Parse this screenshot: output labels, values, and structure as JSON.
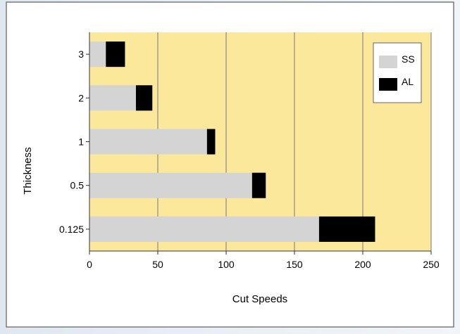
{
  "chart_data": {
    "type": "bar",
    "orientation": "horizontal",
    "stacked": true,
    "categories": [
      "3",
      "2",
      "1",
      "0.5",
      "0.125"
    ],
    "series": [
      {
        "name": "SS",
        "values": [
          12,
          34,
          86,
          119,
          168
        ]
      },
      {
        "name": "AL",
        "values": [
          14,
          12,
          6,
          10,
          41
        ]
      }
    ],
    "title": "",
    "xlabel": "Cut Speeds",
    "ylabel": "Thickness",
    "xlim": [
      0,
      250
    ],
    "xticks": [
      0,
      50,
      100,
      150,
      200,
      250
    ],
    "grid": true,
    "legend": "top-right",
    "colors": {
      "plot_bg": "#fbe89a",
      "SS": "#d4d4d4",
      "AL": "#000000",
      "grid": "#8a8a8a",
      "frame": "#7a7a7a"
    }
  }
}
